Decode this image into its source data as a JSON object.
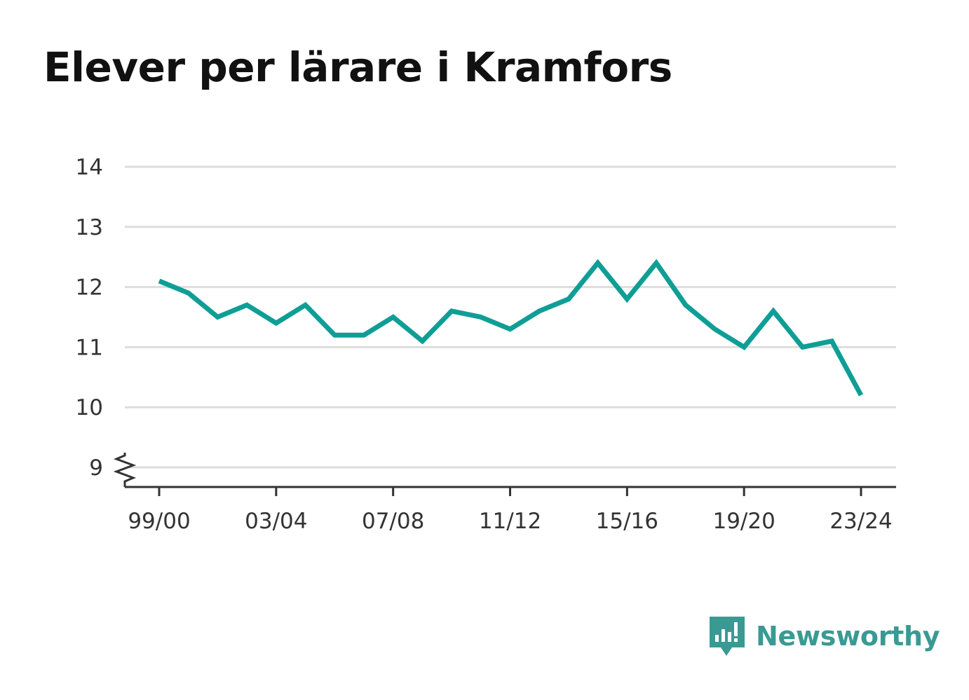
{
  "chart_data": {
    "type": "line",
    "title": "Elever per lärare i Kramfors",
    "xlabel": "",
    "ylabel": "",
    "x": [
      "99/00",
      "00/01",
      "01/02",
      "02/03",
      "03/04",
      "04/05",
      "05/06",
      "06/07",
      "07/08",
      "08/09",
      "09/10",
      "10/11",
      "11/12",
      "12/13",
      "13/14",
      "14/15",
      "15/16",
      "16/17",
      "17/18",
      "18/19",
      "19/20",
      "20/21",
      "21/22",
      "22/23",
      "23/24"
    ],
    "x_tick_labels": [
      "99/00",
      "03/04",
      "07/08",
      "11/12",
      "15/16",
      "19/20",
      "23/24"
    ],
    "series": [
      {
        "values": [
          12.1,
          11.9,
          11.5,
          11.7,
          11.4,
          11.7,
          11.2,
          11.2,
          11.5,
          11.1,
          11.6,
          11.5,
          11.3,
          11.6,
          11.8,
          12.4,
          11.8,
          12.4,
          11.7,
          11.3,
          11.0,
          11.6,
          11.0,
          11.1,
          10.2
        ],
        "color": "#0f9e96"
      }
    ],
    "y_ticks": [
      9,
      10,
      11,
      12,
      13,
      14
    ],
    "ylim": [
      9,
      14
    ],
    "y_axis_break": true,
    "grid": true,
    "legend": "none"
  },
  "brand": {
    "name": "Newsworthy",
    "icon": "newsworthy-logo-icon",
    "color": "#3a9a93"
  }
}
